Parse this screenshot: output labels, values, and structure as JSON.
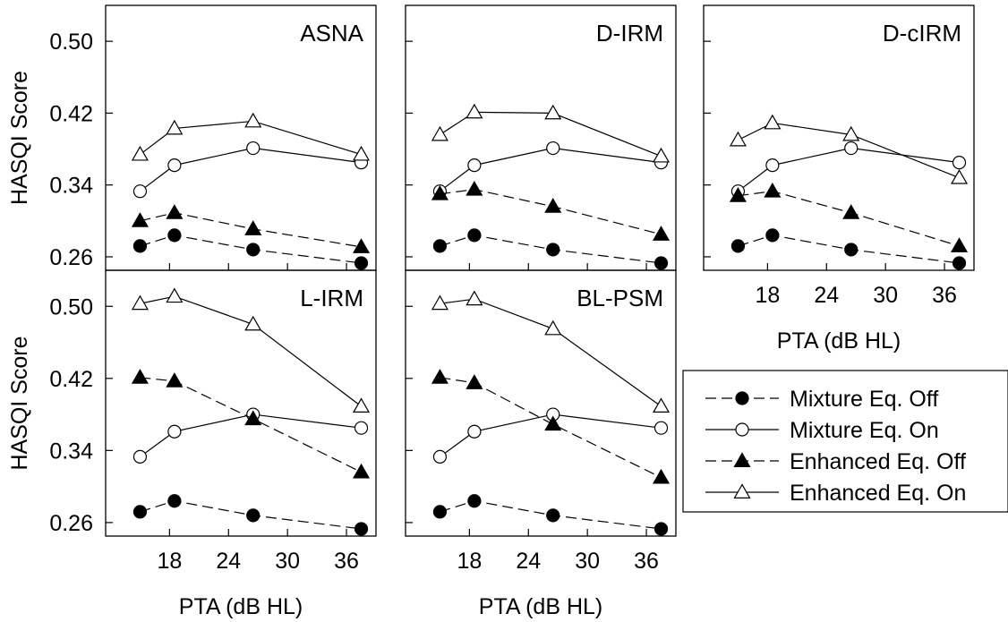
{
  "chart_data": [
    {
      "type": "line",
      "title": "ASNA",
      "xlabel": "",
      "ylabel": "HASQI Score",
      "xlim": [
        11.5,
        39
      ],
      "ylim": [
        0.245,
        0.54
      ],
      "xticks": [
        18,
        24,
        30,
        36
      ],
      "yticks": [
        0.26,
        0.34,
        0.42,
        0.5
      ],
      "ytick_labels": [
        "0.26",
        "0.34",
        "0.42",
        "0.50"
      ],
      "x": [
        15,
        18.5,
        26.5,
        37.5
      ],
      "series": [
        {
          "name": "Mixture Eq. Off",
          "values": [
            0.272,
            0.284,
            0.268,
            0.253
          ]
        },
        {
          "name": "Mixture Eq. On",
          "values": [
            0.333,
            0.362,
            0.381,
            0.365
          ]
        },
        {
          "name": "Enhanced Eq. Off",
          "values": [
            0.3,
            0.309,
            0.291,
            0.271
          ]
        },
        {
          "name": "Enhanced Eq. On",
          "values": [
            0.374,
            0.403,
            0.411,
            0.374
          ]
        }
      ]
    },
    {
      "type": "line",
      "title": "D-IRM",
      "xlabel": "",
      "ylabel": "",
      "xlim": [
        11.5,
        39
      ],
      "ylim": [
        0.245,
        0.54
      ],
      "xticks": [
        18,
        24,
        30,
        36
      ],
      "yticks": [
        0.26,
        0.34,
        0.42,
        0.5
      ],
      "x": [
        15,
        18.5,
        26.5,
        37.5
      ],
      "series": [
        {
          "name": "Mixture Eq. Off",
          "values": [
            0.272,
            0.284,
            0.268,
            0.253
          ]
        },
        {
          "name": "Mixture Eq. On",
          "values": [
            0.333,
            0.362,
            0.381,
            0.365
          ]
        },
        {
          "name": "Enhanced Eq. Off",
          "values": [
            0.33,
            0.335,
            0.316,
            0.285
          ]
        },
        {
          "name": "Enhanced Eq. On",
          "values": [
            0.396,
            0.421,
            0.42,
            0.372
          ]
        }
      ]
    },
    {
      "type": "line",
      "title": "D-cIRM",
      "xlabel": "PTA (dB HL)",
      "ylabel": "",
      "xlim": [
        11.5,
        39
      ],
      "ylim": [
        0.245,
        0.54
      ],
      "xticks": [
        18,
        24,
        30,
        36
      ],
      "yticks": [
        0.26,
        0.34,
        0.42,
        0.5
      ],
      "xtick_labels": [
        "18",
        "24",
        "30",
        "36"
      ],
      "x": [
        15,
        18.5,
        26.5,
        37.5
      ],
      "series": [
        {
          "name": "Mixture Eq. Off",
          "values": [
            0.272,
            0.284,
            0.268,
            0.253
          ]
        },
        {
          "name": "Mixture Eq. On",
          "values": [
            0.333,
            0.362,
            0.381,
            0.365
          ]
        },
        {
          "name": "Enhanced Eq. Off",
          "values": [
            0.328,
            0.333,
            0.309,
            0.272
          ]
        },
        {
          "name": "Enhanced Eq. On",
          "values": [
            0.39,
            0.409,
            0.396,
            0.348
          ]
        }
      ]
    },
    {
      "type": "line",
      "title": "L-IRM",
      "xlabel": "PTA (dB HL)",
      "ylabel": "HASQI Score",
      "xlim": [
        11.5,
        39
      ],
      "ylim": [
        0.245,
        0.54
      ],
      "xticks": [
        18,
        24,
        30,
        36
      ],
      "yticks": [
        0.26,
        0.34,
        0.42,
        0.5
      ],
      "xtick_labels": [
        "18",
        "24",
        "30",
        "36"
      ],
      "ytick_labels": [
        "0.26",
        "0.34",
        "0.42",
        "0.50"
      ],
      "x": [
        15,
        18.5,
        26.5,
        37.5
      ],
      "series": [
        {
          "name": "Mixture Eq. Off",
          "values": [
            0.272,
            0.284,
            0.268,
            0.253
          ]
        },
        {
          "name": "Mixture Eq. On",
          "values": [
            0.333,
            0.361,
            0.38,
            0.365
          ]
        },
        {
          "name": "Enhanced Eq. Off",
          "values": [
            0.421,
            0.417,
            0.375,
            0.316
          ]
        },
        {
          "name": "Enhanced Eq. On",
          "values": [
            0.503,
            0.511,
            0.48,
            0.389
          ]
        }
      ]
    },
    {
      "type": "line",
      "title": "BL-PSM",
      "xlabel": "PTA (dB HL)",
      "ylabel": "",
      "xlim": [
        11.5,
        39
      ],
      "ylim": [
        0.245,
        0.54
      ],
      "xticks": [
        18,
        24,
        30,
        36
      ],
      "yticks": [
        0.26,
        0.34,
        0.42,
        0.5
      ],
      "xtick_labels": [
        "18",
        "24",
        "30",
        "36"
      ],
      "x": [
        15,
        18.5,
        26.5,
        37.5
      ],
      "series": [
        {
          "name": "Mixture Eq. Off",
          "values": [
            0.272,
            0.284,
            0.268,
            0.253
          ]
        },
        {
          "name": "Mixture Eq. On",
          "values": [
            0.333,
            0.361,
            0.38,
            0.365
          ]
        },
        {
          "name": "Enhanced Eq. Off",
          "values": [
            0.421,
            0.415,
            0.369,
            0.31
          ]
        },
        {
          "name": "Enhanced Eq. On",
          "values": [
            0.503,
            0.508,
            0.475,
            0.389
          ]
        }
      ]
    }
  ],
  "legend": {
    "placement": "lower-right",
    "entries": [
      {
        "label": "Mixture Eq. Off",
        "marker": "filled-circle",
        "line": "dashed"
      },
      {
        "label": "Mixture Eq. On",
        "marker": "open-circle",
        "line": "solid"
      },
      {
        "label": "Enhanced Eq. Off",
        "marker": "filled-triangle",
        "line": "dashed"
      },
      {
        "label": "Enhanced Eq. On",
        "marker": "open-triangle",
        "line": "solid"
      }
    ]
  },
  "colors": {
    "ink": "#000000",
    "background": "#ffffff"
  }
}
